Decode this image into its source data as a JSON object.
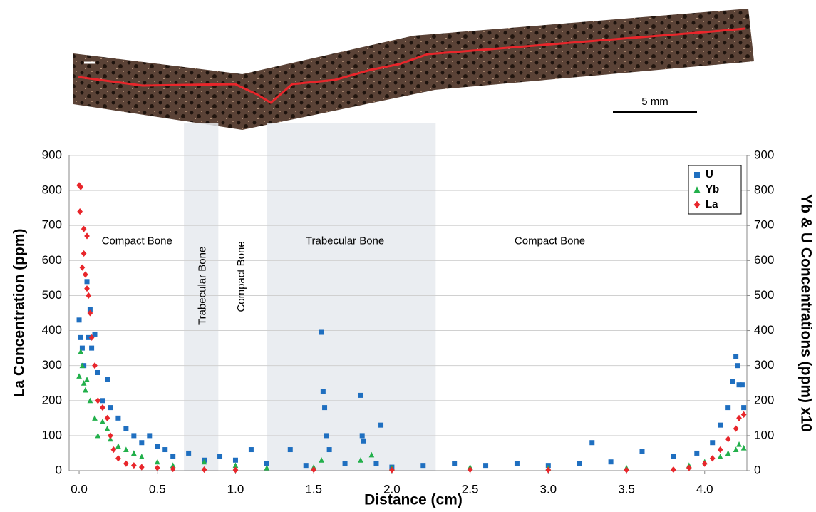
{
  "chart_data": {
    "type": "scatter",
    "x_label": "Distance (cm)",
    "y_label": "La Concentration (ppm)",
    "y2_label": "Yb & U Concentrations (ppm) x10",
    "photo_scale_label": "5 mm",
    "xlim": [
      -0.064,
      4.27
    ],
    "xticks": [
      {
        "value": 0,
        "label": "0.0"
      },
      0.5,
      {
        "value": 1,
        "label": "1.0"
      },
      1.5,
      {
        "value": 2,
        "label": "2.0"
      },
      2.5,
      {
        "value": 3,
        "label": "3.0"
      },
      3.5,
      {
        "value": 4,
        "label": "4.0"
      }
    ],
    "ylim": [
      0,
      900
    ],
    "yticks": [
      0,
      100,
      200,
      300,
      400,
      500,
      600,
      700,
      800,
      900
    ],
    "y2lim": [
      0,
      900
    ],
    "y2ticks": [
      0,
      100,
      200,
      300,
      400,
      500,
      600,
      700,
      800,
      900
    ],
    "grid": true,
    "legend": "upper right",
    "shaded_regions": [
      [
        0.67,
        0.89
      ],
      [
        1.2,
        2.28
      ]
    ],
    "annotations": [
      {
        "text": "Compact Bone",
        "x": 0.37,
        "y": 655,
        "vertical": false
      },
      {
        "text": "Trabecular Bone",
        "x": 0.79,
        "y": 640,
        "vertical": true
      },
      {
        "text": "Compact Bone",
        "x": 1.04,
        "y": 655,
        "vertical": true
      },
      {
        "text": "Trabecular Bone",
        "x": 1.7,
        "y": 655,
        "vertical": false
      },
      {
        "text": "Compact Bone",
        "x": 3.01,
        "y": 655,
        "vertical": false
      }
    ],
    "series": [
      {
        "name": "U",
        "color": "#1f6fc0",
        "marker": "square",
        "axis": "y2",
        "x": [
          0,
          0.01,
          0.02,
          0.03,
          0.05,
          0.06,
          0.07,
          0.08,
          0.1,
          0.12,
          0.15,
          0.18,
          0.2,
          0.25,
          0.3,
          0.35,
          0.4,
          0.45,
          0.5,
          0.55,
          0.6,
          0.7,
          0.8,
          0.9,
          1.0,
          1.1,
          1.2,
          1.35,
          1.45,
          1.55,
          1.56,
          1.57,
          1.58,
          1.6,
          1.7,
          1.8,
          1.81,
          1.82,
          1.9,
          1.93,
          2.0,
          2.2,
          2.4,
          2.6,
          2.8,
          3.0,
          3.2,
          3.28,
          3.4,
          3.6,
          3.8,
          3.95,
          4.05,
          4.1,
          4.15,
          4.18,
          4.2,
          4.21,
          4.22,
          4.24,
          4.25
        ],
        "values": [
          430,
          380,
          350,
          300,
          540,
          380,
          460,
          350,
          390,
          280,
          200,
          260,
          180,
          150,
          120,
          100,
          80,
          100,
          70,
          60,
          40,
          50,
          30,
          40,
          30,
          60,
          20,
          60,
          15,
          395,
          225,
          180,
          100,
          60,
          20,
          215,
          100,
          85,
          20,
          130,
          10,
          15,
          20,
          15,
          20,
          15,
          20,
          80,
          25,
          55,
          40,
          50,
          80,
          130,
          180,
          255,
          325,
          300,
          245,
          245,
          180
        ]
      },
      {
        "name": "Yb",
        "color": "#22b04b",
        "marker": "triangle",
        "axis": "y2",
        "x": [
          0,
          0.01,
          0.02,
          0.03,
          0.04,
          0.05,
          0.07,
          0.1,
          0.12,
          0.15,
          0.18,
          0.2,
          0.25,
          0.3,
          0.35,
          0.4,
          0.5,
          0.6,
          0.8,
          1.0,
          1.2,
          1.5,
          1.55,
          1.8,
          1.87,
          2.0,
          2.5,
          3.0,
          3.5,
          3.9,
          4.0,
          4.1,
          4.15,
          4.2,
          4.22,
          4.25
        ],
        "values": [
          270,
          340,
          300,
          250,
          230,
          260,
          200,
          150,
          100,
          140,
          120,
          90,
          70,
          60,
          50,
          40,
          25,
          15,
          25,
          15,
          8,
          10,
          30,
          30,
          45,
          8,
          10,
          8,
          8,
          15,
          25,
          40,
          50,
          60,
          75,
          65
        ]
      },
      {
        "name": "La",
        "color": "#e8262b",
        "marker": "diamond",
        "axis": "y",
        "x": [
          0,
          0.005,
          0.01,
          0.02,
          0.03,
          0.03,
          0.04,
          0.05,
          0.05,
          0.06,
          0.07,
          0.08,
          0.1,
          0.12,
          0.15,
          0.18,
          0.2,
          0.22,
          0.25,
          0.3,
          0.35,
          0.4,
          0.5,
          0.6,
          0.8,
          1.0,
          1.5,
          2.0,
          2.5,
          3.0,
          3.5,
          3.8,
          3.9,
          4.0,
          4.05,
          4.1,
          4.15,
          4.2,
          4.22,
          4.25
        ],
        "values": [
          815,
          740,
          810,
          580,
          690,
          620,
          560,
          520,
          670,
          500,
          450,
          380,
          300,
          200,
          180,
          150,
          100,
          60,
          35,
          20,
          15,
          10,
          8,
          5,
          3,
          2,
          3,
          2,
          3,
          2,
          2,
          3,
          8,
          20,
          35,
          60,
          90,
          120,
          150,
          160
        ]
      }
    ]
  }
}
